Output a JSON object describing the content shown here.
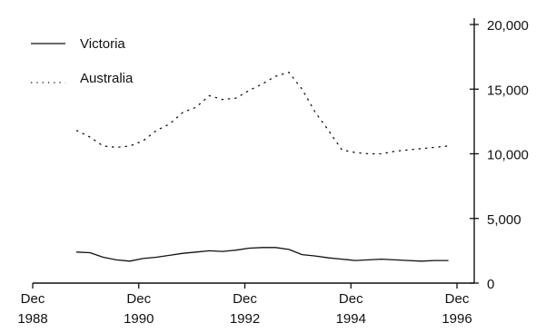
{
  "chart_data": {
    "type": "line",
    "title": "",
    "xlabel": "",
    "ylabel": "",
    "x_ticks": [
      {
        "line1": "Dec",
        "line2": "1988",
        "x": 1988.92
      },
      {
        "line1": "Dec",
        "line2": "1990",
        "x": 1990.92
      },
      {
        "line1": "Dec",
        "line2": "1992",
        "x": 1992.92
      },
      {
        "line1": "Dec",
        "line2": "1994",
        "x": 1994.92
      },
      {
        "line1": "Dec",
        "line2": "1996",
        "x": 1996.92
      }
    ],
    "y_ticks": [
      "0",
      "5,000",
      "10,000",
      "15,000",
      "20,000"
    ],
    "y_tick_values": [
      0,
      5000,
      10000,
      15000,
      20000
    ],
    "ylim": [
      0,
      20000
    ],
    "xlim": [
      1988.92,
      1996.92
    ],
    "y_axis_side": "right",
    "grid": false,
    "legend_position": "top-left",
    "series": [
      {
        "name": "Victoria",
        "style": "solid",
        "color": "#111111",
        "x": [
          1989.75,
          1990.0,
          1990.25,
          1990.5,
          1990.75,
          1991.0,
          1991.25,
          1991.5,
          1991.75,
          1992.0,
          1992.25,
          1992.5,
          1992.75,
          1993.0,
          1993.25,
          1993.5,
          1993.75,
          1994.0,
          1994.25,
          1994.5,
          1994.75,
          1995.0,
          1995.25,
          1995.5,
          1995.75,
          1996.0,
          1996.25,
          1996.5,
          1996.75
        ],
        "values": [
          2400,
          2350,
          2000,
          1800,
          1700,
          1900,
          2000,
          2150,
          2300,
          2400,
          2500,
          2450,
          2550,
          2700,
          2750,
          2750,
          2600,
          2200,
          2100,
          1950,
          1850,
          1750,
          1800,
          1850,
          1800,
          1750,
          1700,
          1750,
          1750
        ]
      },
      {
        "name": "Australia",
        "style": "dotted",
        "color": "#111111",
        "x": [
          1989.75,
          1990.0,
          1990.25,
          1990.5,
          1990.75,
          1991.0,
          1991.25,
          1991.5,
          1991.75,
          1992.0,
          1992.25,
          1992.5,
          1992.75,
          1993.0,
          1993.25,
          1993.5,
          1993.75,
          1994.0,
          1994.25,
          1994.5,
          1994.75,
          1995.0,
          1995.25,
          1995.5,
          1995.75,
          1996.0,
          1996.25,
          1996.5,
          1996.75
        ],
        "values": [
          11800,
          11300,
          10600,
          10500,
          10600,
          11000,
          11800,
          12300,
          13200,
          13600,
          14500,
          14200,
          14300,
          14900,
          15400,
          16000,
          16300,
          15000,
          13200,
          11800,
          10300,
          10100,
          10000,
          10000,
          10200,
          10300,
          10400,
          10500,
          10600
        ]
      }
    ]
  }
}
